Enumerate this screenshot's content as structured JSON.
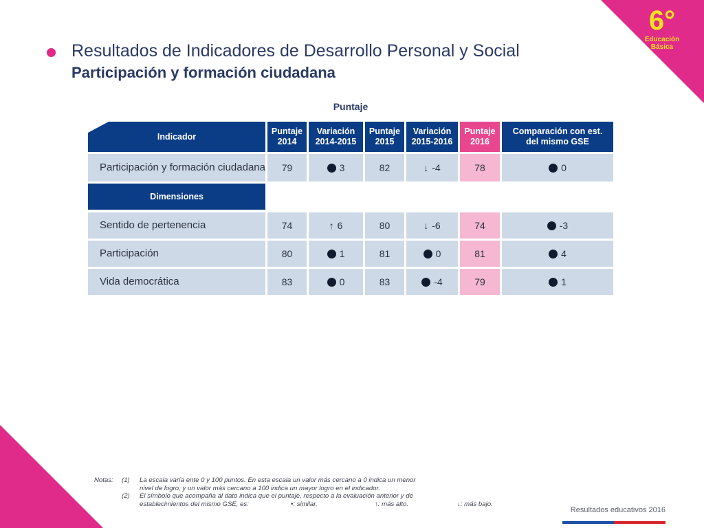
{
  "badge": {
    "grade": "6°",
    "line1": "Educación",
    "line2": "Básica"
  },
  "header": {
    "title": "Resultados de Indicadores de Desarrollo Personal y Social",
    "subtitle": "Participación y formación ciudadana"
  },
  "table": {
    "super_header": "Puntaje",
    "columns": [
      "Indicador",
      "Puntaje 2014",
      "Variación 2014-2015",
      "Puntaje 2015",
      "Variación 2015-2016",
      "Puntaje 2016",
      "Comparación con est. del mismo GSE"
    ],
    "indicator_row": {
      "name": "Participación y formación ciudadana",
      "p2014": "79",
      "v1415": {
        "symbol": "dot",
        "value": "3"
      },
      "p2015": "82",
      "v1516": {
        "symbol": "↓",
        "value": "-4"
      },
      "p2016": "78",
      "comp": {
        "symbol": "dot",
        "value": "0"
      }
    },
    "dimensions_label": "Dimensiones",
    "dimension_rows": [
      {
        "name": "Sentido de pertenencia",
        "p2014": "74",
        "v1415": {
          "symbol": "↑",
          "value": "6"
        },
        "p2015": "80",
        "v1516": {
          "symbol": "↓",
          "value": "-6"
        },
        "p2016": "74",
        "comp": {
          "symbol": "dot",
          "value": "-3"
        }
      },
      {
        "name": "Participación",
        "p2014": "80",
        "v1415": {
          "symbol": "dot",
          "value": "1"
        },
        "p2015": "81",
        "v1516": {
          "symbol": "dot",
          "value": "0"
        },
        "p2016": "81",
        "comp": {
          "symbol": "dot",
          "value": "4"
        }
      },
      {
        "name": "Vida democrática",
        "p2014": "83",
        "v1415": {
          "symbol": "dot",
          "value": "0"
        },
        "p2015": "83",
        "v1516": {
          "symbol": "dot",
          "value": "-4"
        },
        "p2016": "79",
        "comp": {
          "symbol": "dot",
          "value": "1"
        }
      }
    ]
  },
  "notes": {
    "label": "Notas:",
    "n1": "(1)",
    "n1_line1": "La escala varía ente 0 y 100 puntos. En esta escala un valor más cercano a 0 indica un menor",
    "n1_line2": "nivel de logro, y un valor más cercano a 100 indica un mayor logro en el indicador.",
    "n2": "(2)",
    "n2_line1": "El símbolo que acompaña al dato indica que el puntaje, respecto a la evaluación anterior y de",
    "n2_line2a": "establecimientos del mismo GSE, es:",
    "legend_similar": "•: similar.",
    "legend_alto": "↑: más alto.",
    "legend_bajo": "↓: más bajo."
  },
  "footer": {
    "text": "Resultados educativos 2016"
  },
  "colors": {
    "navy": "#0b3d86",
    "pink": "#e02b8a",
    "row": "#cdd9e6",
    "pink_cell": "#f5b7d2",
    "bar_blue": "#1f4fa6",
    "bar_red": "#d7262e"
  }
}
